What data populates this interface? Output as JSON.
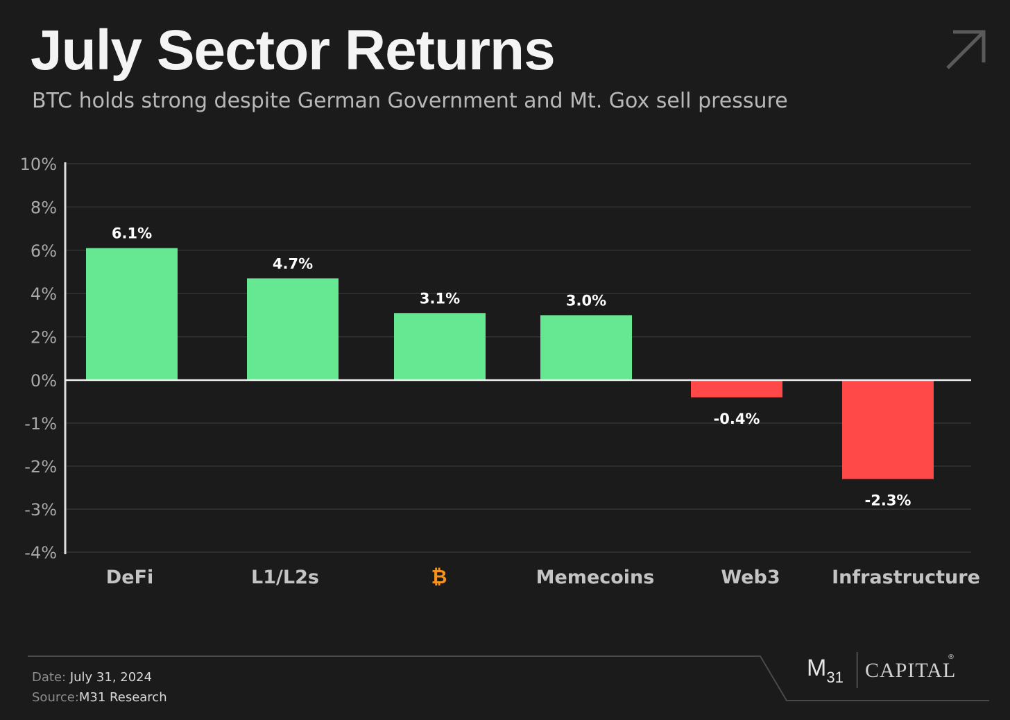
{
  "header": {
    "title": "July Sector Returns",
    "subtitle": "BTC holds strong despite German Government and Mt. Gox sell pressure",
    "corner_icon": "arrow-up-right-icon"
  },
  "chart_data": {
    "type": "bar",
    "categories": [
      "DeFi",
      "L1/L2s",
      "₿",
      "Memecoins",
      "Web3",
      "Infrastructure"
    ],
    "values": [
      6.1,
      4.7,
      3.1,
      3.0,
      -0.4,
      -2.3
    ],
    "data_labels": [
      "6.1%",
      "4.7%",
      "3.1%",
      "3.0%",
      "-0.4%",
      "-2.3%"
    ],
    "y_ticks": [
      {
        "value": 10,
        "label": "10%"
      },
      {
        "value": 8,
        "label": "8%"
      },
      {
        "value": 6,
        "label": "6%"
      },
      {
        "value": 4,
        "label": "4%"
      },
      {
        "value": 2,
        "label": "2%"
      },
      {
        "value": 0,
        "label": "0%"
      },
      {
        "value": -1,
        "label": "-1%"
      },
      {
        "value": -2,
        "label": "-2%"
      },
      {
        "value": -3,
        "label": "-3%"
      },
      {
        "value": -4,
        "label": "-4%"
      }
    ],
    "ylim": [
      -4,
      10
    ],
    "grid": true,
    "colors": {
      "positive": "#66e893",
      "negative": "#ff4848",
      "btc_label": "#f7931a"
    }
  },
  "footer": {
    "date_label": "Date:",
    "date_value": "July 31, 2024",
    "source_label": "Source:",
    "source_value": "M31 Research",
    "logo_m": "M",
    "logo_sub": "31",
    "logo_capital": "CAPITAL",
    "logo_reg": "®"
  }
}
